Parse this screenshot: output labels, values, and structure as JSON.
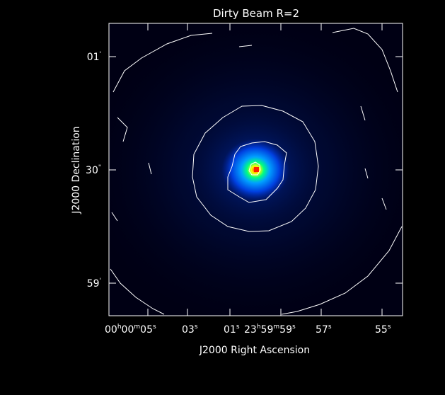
{
  "chart_data": {
    "type": "heatmap",
    "title": "Dirty Beam R=2",
    "xlabel": "J2000 Right Ascension",
    "ylabel": "J2000 Declination",
    "x_tick_labels": [
      {
        "h": "00",
        "m": "00",
        "s": "05"
      },
      {
        "s": "03"
      },
      {
        "s": "01"
      },
      {
        "h": "23",
        "m": "59",
        "s": "59"
      },
      {
        "s": "57"
      },
      {
        "s": "55"
      }
    ],
    "y_tick_labels": [
      {
        "value": "01",
        "unit": "'"
      },
      {
        "value": "30",
        "unit": "\""
      },
      {
        "value": "59",
        "unit": "'"
      }
    ],
    "units": {
      "h": "h",
      "m": "m",
      "s": "s"
    },
    "colormap": [
      "#000010",
      "#001050",
      "#0030c0",
      "#00a0ff",
      "#00ff60",
      "#ffff00",
      "#ff2000"
    ],
    "contours": true,
    "background_color": "#000000",
    "frame_color": "#ffffff"
  }
}
